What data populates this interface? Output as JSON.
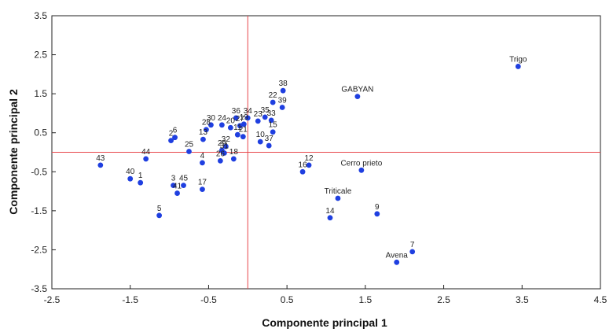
{
  "chart_data": {
    "type": "scatter",
    "title": "",
    "xlabel": "Componente principal 1",
    "ylabel": "Componente principal 2",
    "xlim": [
      -2.5,
      4.5
    ],
    "ylim": [
      -3.5,
      3.5
    ],
    "xticks": [
      "-2.5",
      "-1.5",
      "-0.5",
      "0.5",
      "1.5",
      "2.5",
      "3.5",
      "4.5"
    ],
    "yticks": [
      "3.5",
      "2.5",
      "1.5",
      "0.5",
      "-0.5",
      "-1.5",
      "-2.5",
      "-3.5"
    ],
    "grid": false,
    "reference_lines": {
      "x": 0,
      "y": 0,
      "color": "#e8474c"
    },
    "marker_color": "#1f3fe0",
    "points": [
      {
        "label": "Trigo",
        "x": 3.45,
        "y": 2.2
      },
      {
        "label": "GABYAN",
        "x": 1.4,
        "y": 1.43
      },
      {
        "label": "Cerro prieto",
        "x": 1.45,
        "y": -0.46
      },
      {
        "label": "Triticale",
        "x": 1.15,
        "y": -1.18
      },
      {
        "label": "Avena",
        "x": 1.9,
        "y": -2.82
      },
      {
        "label": "7",
        "x": 2.1,
        "y": -2.55
      },
      {
        "label": "9",
        "x": 1.65,
        "y": -1.58
      },
      {
        "label": "14",
        "x": 1.05,
        "y": -1.68
      },
      {
        "label": "12",
        "x": 0.78,
        "y": -0.33
      },
      {
        "label": "16",
        "x": 0.7,
        "y": -0.5
      },
      {
        "label": "38",
        "x": 0.45,
        "y": 1.58
      },
      {
        "label": "22",
        "x": 0.32,
        "y": 1.28
      },
      {
        "label": "39",
        "x": 0.44,
        "y": 1.15
      },
      {
        "label": "35",
        "x": 0.22,
        "y": 0.9
      },
      {
        "label": "33",
        "x": 0.3,
        "y": 0.82
      },
      {
        "label": "15",
        "x": 0.32,
        "y": 0.52
      },
      {
        "label": "10",
        "x": 0.16,
        "y": 0.27
      },
      {
        "label": "37",
        "x": 0.27,
        "y": 0.17
      },
      {
        "label": "23",
        "x": 0.13,
        "y": 0.8
      },
      {
        "label": "34",
        "x": 0.0,
        "y": 0.88
      },
      {
        "label": "36",
        "x": -0.15,
        "y": 0.88
      },
      {
        "label": "19",
        "x": -0.05,
        "y": 0.72
      },
      {
        "label": "27",
        "x": -0.1,
        "y": 0.68
      },
      {
        "label": "21",
        "x": -0.06,
        "y": 0.4
      },
      {
        "label": "11",
        "x": -0.13,
        "y": 0.45
      },
      {
        "label": "24",
        "x": -0.33,
        "y": 0.7
      },
      {
        "label": "30",
        "x": -0.47,
        "y": 0.7
      },
      {
        "label": "20",
        "x": -0.22,
        "y": 0.63
      },
      {
        "label": "28",
        "x": -0.53,
        "y": 0.58
      },
      {
        "label": "32",
        "x": -0.28,
        "y": 0.15
      },
      {
        "label": "29",
        "x": -0.33,
        "y": 0.05
      },
      {
        "label": "31",
        "x": -0.3,
        "y": -0.02
      },
      {
        "label": "18",
        "x": -0.18,
        "y": -0.17
      },
      {
        "label": "13",
        "x": -0.57,
        "y": 0.33
      },
      {
        "label": "6",
        "x": -0.93,
        "y": 0.38
      },
      {
        "label": "2",
        "x": -0.98,
        "y": 0.3
      },
      {
        "label": "25",
        "x": -0.75,
        "y": 0.02
      },
      {
        "label": "4",
        "x": -0.58,
        "y": -0.27
      },
      {
        "label": "26",
        "x": -0.35,
        "y": -0.22
      },
      {
        "label": "17",
        "x": -0.58,
        "y": -0.95
      },
      {
        "label": "44",
        "x": -1.3,
        "y": -0.17
      },
      {
        "label": "43",
        "x": -1.88,
        "y": -0.33
      },
      {
        "label": "40",
        "x": -1.5,
        "y": -0.68
      },
      {
        "label": "1",
        "x": -1.37,
        "y": -0.78
      },
      {
        "label": "3",
        "x": -0.95,
        "y": -0.85
      },
      {
        "label": "45",
        "x": -0.82,
        "y": -0.85
      },
      {
        "label": "41",
        "x": -0.9,
        "y": -1.05
      },
      {
        "label": "5",
        "x": -1.13,
        "y": -1.62
      }
    ]
  }
}
